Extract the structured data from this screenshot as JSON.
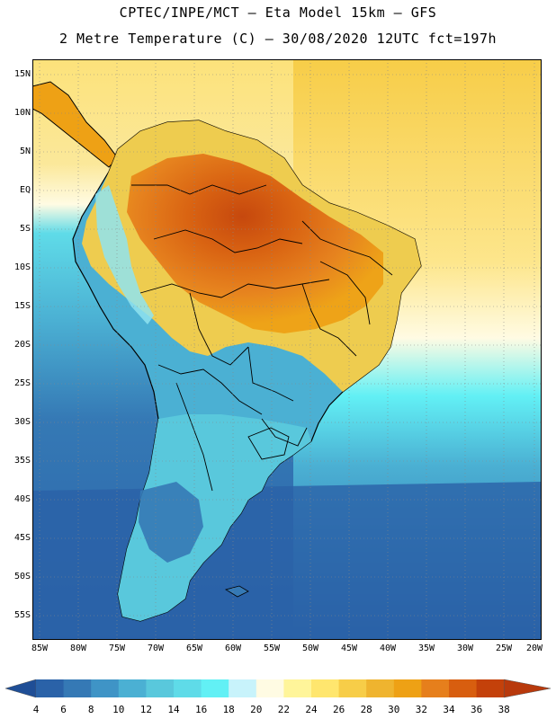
{
  "header": {
    "line1": "CPTEC/INPE/MCT –  Eta Model 15km – GFS",
    "line2": "2 Metre Temperature (C) – 30/08/2020 12UTC fct=197h"
  },
  "map": {
    "region": "South America",
    "variable": "2 Metre Temperature",
    "units": "C",
    "lat_labels": [
      "15N",
      "10N",
      "5N",
      "EQ",
      "5S",
      "10S",
      "15S",
      "20S",
      "25S",
      "30S",
      "35S",
      "40S",
      "45S",
      "50S",
      "55S"
    ],
    "lon_labels": [
      "85W",
      "80W",
      "75W",
      "70W",
      "65W",
      "60W",
      "55W",
      "50W",
      "45W",
      "40W",
      "35W",
      "30W",
      "25W",
      "20W"
    ]
  },
  "legend": {
    "values": [
      "4",
      "6",
      "8",
      "10",
      "12",
      "14",
      "16",
      "18",
      "20",
      "22",
      "24",
      "26",
      "28",
      "30",
      "32",
      "34",
      "36",
      "38"
    ],
    "colors": [
      "#1f4e96",
      "#2a62a8",
      "#3579b5",
      "#3f94c6",
      "#4bb0d3",
      "#59c8dc",
      "#5fdbe8",
      "#62f0f5",
      "#c8f3fb",
      "#fffbe3",
      "#fff59a",
      "#ffe66e",
      "#f7cd48",
      "#efb42f",
      "#eea115",
      "#e67f1c",
      "#d85e0f",
      "#c4410a",
      "#b8390c"
    ]
  }
}
